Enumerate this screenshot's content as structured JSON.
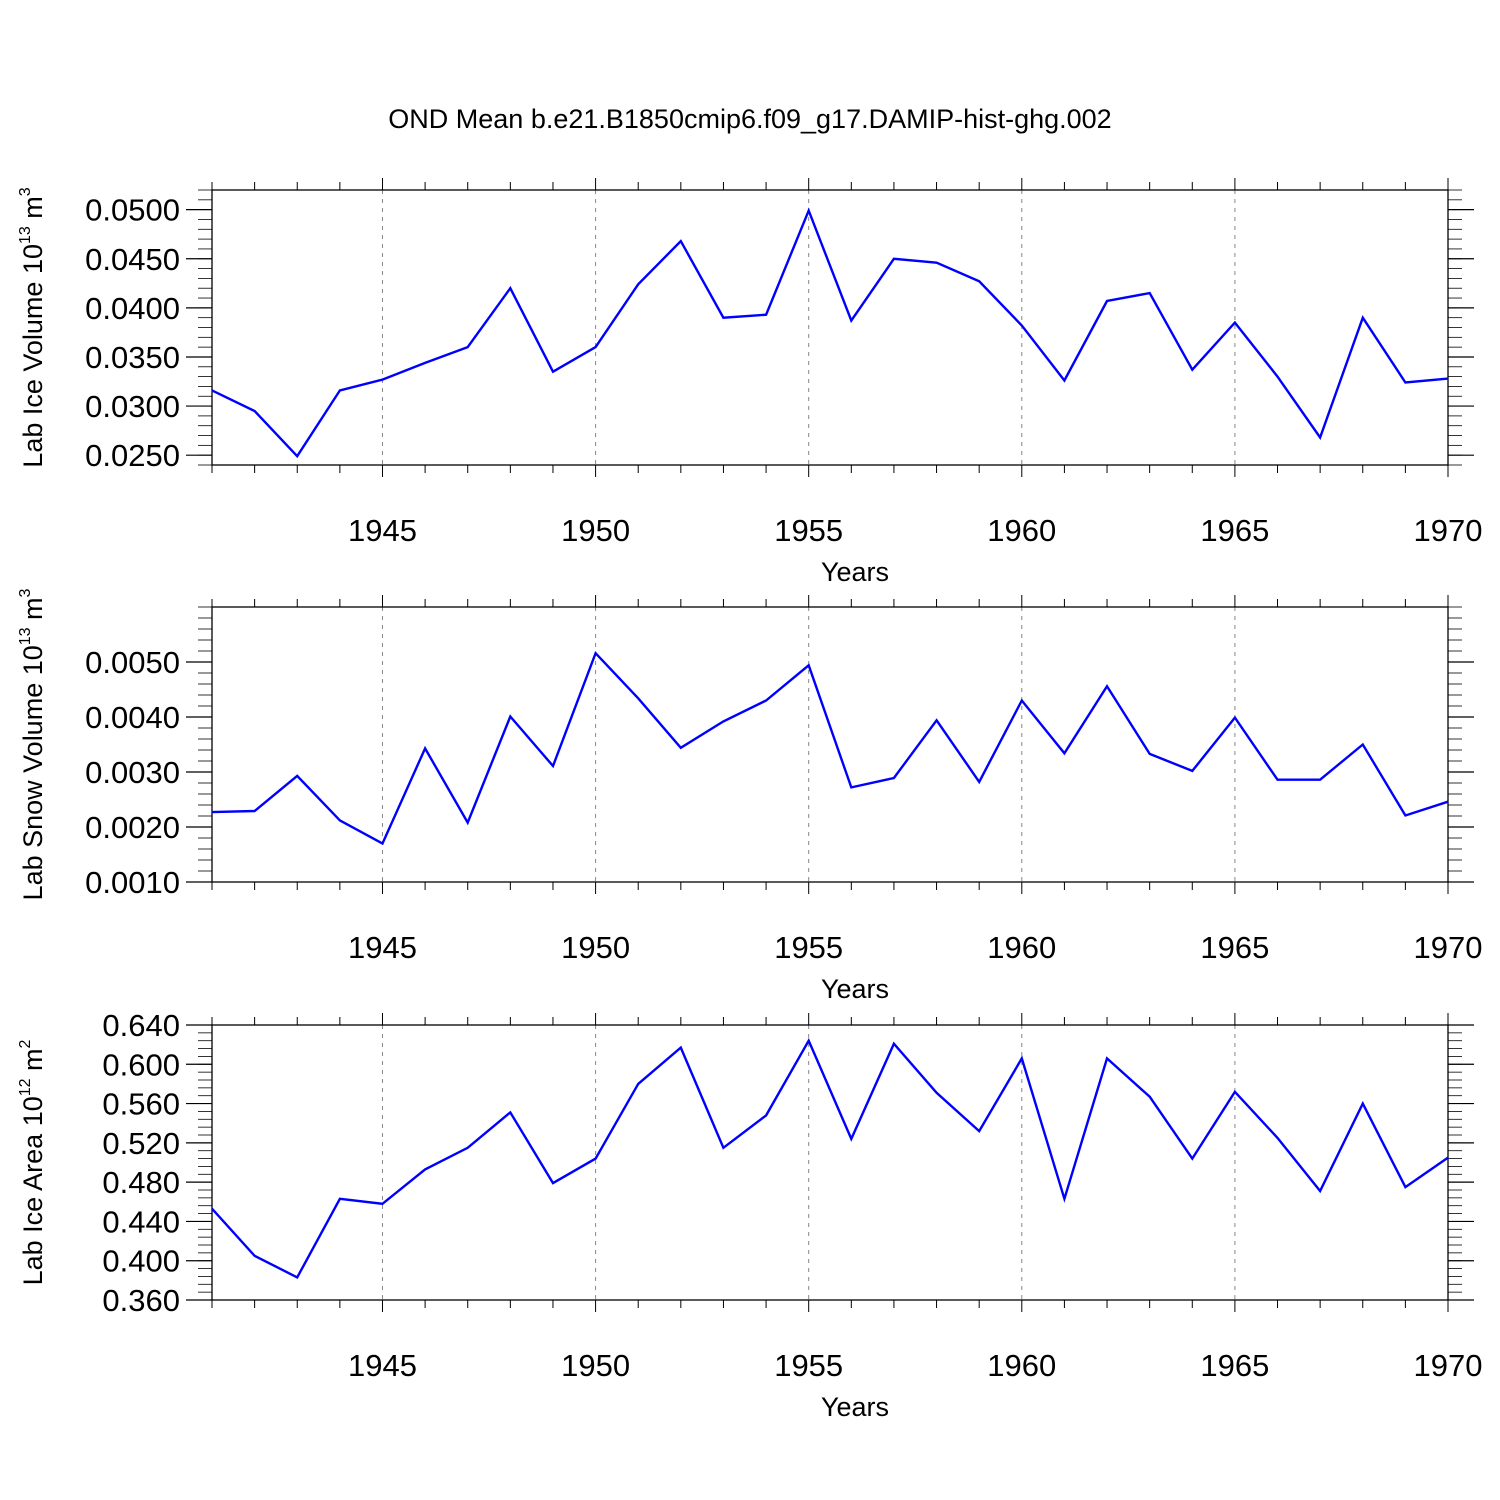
{
  "title": "OND Mean b.e21.B1850cmip6.f09_g17.DAMIP-hist-ghg.002",
  "colors": {
    "line": "#0000ff",
    "axis": "#000000",
    "grid": "#888888"
  },
  "chart_data": [
    {
      "type": "line",
      "xlabel": "Years",
      "ylabel": {
        "text": "Lab Ice Volume 10",
        "sup": "13",
        "unit": " m",
        "unit_sup": "3"
      },
      "xlim": [
        1941,
        1970
      ],
      "ylim": [
        0.024,
        0.052
      ],
      "yticks": [
        0.025,
        0.03,
        0.035,
        0.04,
        0.045,
        0.05
      ],
      "ytick_labels": [
        "0.0250",
        "0.0300",
        "0.0350",
        "0.0400",
        "0.0450",
        "0.0500"
      ],
      "yminor_step": 0.001,
      "xticks": [
        1945,
        1950,
        1955,
        1960,
        1965,
        1970
      ],
      "xtick_labels": [
        "1945",
        "1950",
        "1955",
        "1960",
        "1965",
        "1970"
      ],
      "grid_x": true,
      "x": [
        1941,
        1942,
        1943,
        1944,
        1945,
        1946,
        1947,
        1948,
        1949,
        1950,
        1951,
        1952,
        1953,
        1954,
        1955,
        1956,
        1957,
        1958,
        1959,
        1960,
        1961,
        1962,
        1963,
        1964,
        1965,
        1966,
        1967,
        1968,
        1969,
        1970
      ],
      "values": [
        0.0316,
        0.0295,
        0.0249,
        0.0316,
        0.0327,
        0.0344,
        0.036,
        0.042,
        0.0335,
        0.036,
        0.0424,
        0.0468,
        0.039,
        0.0393,
        0.0499,
        0.0387,
        0.045,
        0.0446,
        0.0427,
        0.0382,
        0.0326,
        0.0407,
        0.0415,
        0.0337,
        0.0385,
        0.033,
        0.0268,
        0.039,
        0.0324,
        0.0328
      ]
    },
    {
      "type": "line",
      "xlabel": "Years",
      "ylabel": {
        "text": "Lab Snow Volume 10",
        "sup": "13",
        "unit": " m",
        "unit_sup": "3"
      },
      "xlim": [
        1941,
        1970
      ],
      "ylim": [
        0.001,
        0.006
      ],
      "yticks": [
        0.001,
        0.002,
        0.003,
        0.004,
        0.005
      ],
      "ytick_labels": [
        "0.0010",
        "0.0020",
        "0.0030",
        "0.0040",
        "0.0050"
      ],
      "yminor_step": 0.0002,
      "xticks": [
        1945,
        1950,
        1955,
        1960,
        1965,
        1970
      ],
      "xtick_labels": [
        "1945",
        "1950",
        "1955",
        "1960",
        "1965",
        "1970"
      ],
      "grid_x": true,
      "x": [
        1941,
        1942,
        1943,
        1944,
        1945,
        1946,
        1947,
        1948,
        1949,
        1950,
        1951,
        1952,
        1953,
        1954,
        1955,
        1956,
        1957,
        1958,
        1959,
        1960,
        1961,
        1962,
        1963,
        1964,
        1965,
        1966,
        1967,
        1968,
        1969,
        1970
      ],
      "values": [
        0.00227,
        0.00229,
        0.00293,
        0.00212,
        0.0017,
        0.00343,
        0.00208,
        0.00401,
        0.00311,
        0.00516,
        0.00434,
        0.00344,
        0.00392,
        0.0043,
        0.00494,
        0.00272,
        0.00289,
        0.00394,
        0.00282,
        0.0043,
        0.00334,
        0.00456,
        0.00333,
        0.00302,
        0.00399,
        0.00286,
        0.00286,
        0.0035,
        0.00221,
        0.00246
      ]
    },
    {
      "type": "line",
      "xlabel": "Years",
      "ylabel": {
        "text": "Lab Ice Area 10",
        "sup": "12",
        "unit": " m",
        "unit_sup": "2"
      },
      "xlim": [
        1941,
        1970
      ],
      "ylim": [
        0.36,
        0.64
      ],
      "yticks": [
        0.36,
        0.4,
        0.44,
        0.48,
        0.52,
        0.56,
        0.6,
        0.64
      ],
      "ytick_labels": [
        "0.360",
        "0.400",
        "0.440",
        "0.480",
        "0.520",
        "0.560",
        "0.600",
        "0.640"
      ],
      "yminor_step": 0.008,
      "xticks": [
        1945,
        1950,
        1955,
        1960,
        1965,
        1970
      ],
      "xtick_labels": [
        "1945",
        "1950",
        "1955",
        "1960",
        "1965",
        "1970"
      ],
      "grid_x": true,
      "x": [
        1941,
        1942,
        1943,
        1944,
        1945,
        1946,
        1947,
        1948,
        1949,
        1950,
        1951,
        1952,
        1953,
        1954,
        1955,
        1956,
        1957,
        1958,
        1959,
        1960,
        1961,
        1962,
        1963,
        1964,
        1965,
        1966,
        1967,
        1968,
        1969,
        1970
      ],
      "values": [
        0.453,
        0.405,
        0.383,
        0.463,
        0.458,
        0.493,
        0.515,
        0.551,
        0.479,
        0.504,
        0.58,
        0.617,
        0.515,
        0.548,
        0.624,
        0.524,
        0.621,
        0.571,
        0.532,
        0.606,
        0.463,
        0.606,
        0.567,
        0.504,
        0.572,
        0.525,
        0.471,
        0.56,
        0.475,
        0.505
      ]
    }
  ]
}
